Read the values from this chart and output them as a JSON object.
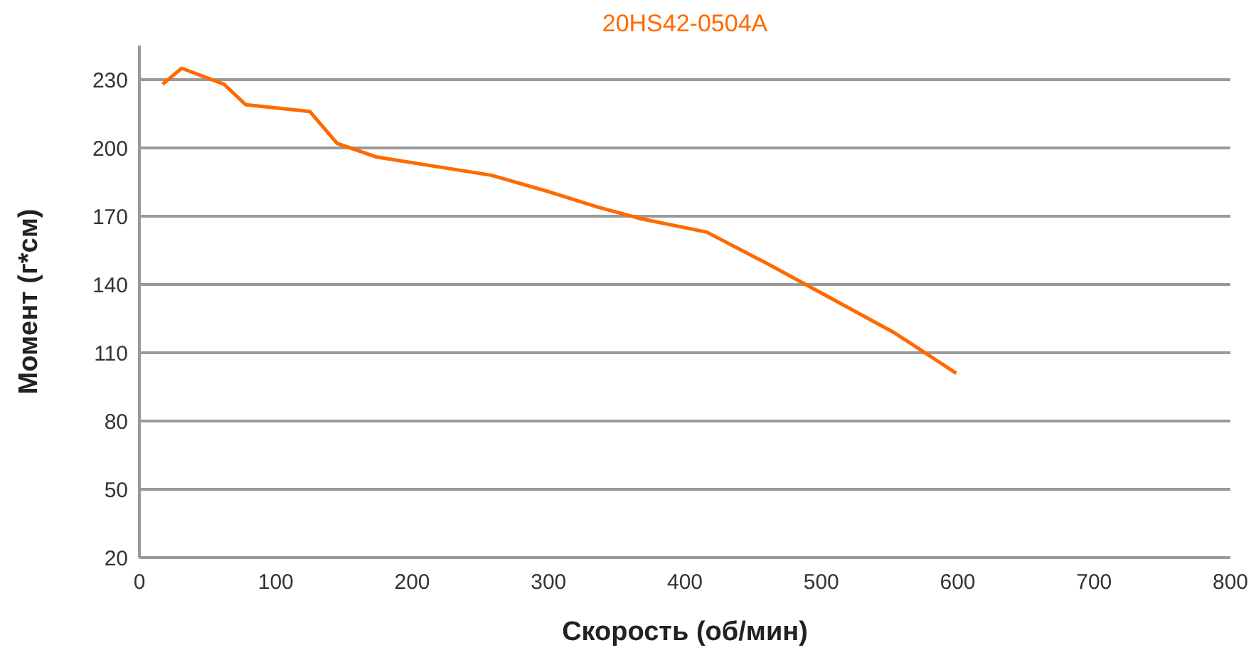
{
  "chart_data": {
    "type": "line",
    "title": "20HS42-0504A",
    "xlabel": "Скорость (об/мин)",
    "ylabel": "Момент (г*см)",
    "xlim": [
      0,
      800
    ],
    "xticks": [
      0,
      100,
      200,
      300,
      400,
      500,
      600,
      700,
      800
    ],
    "ylim": [
      20,
      245
    ],
    "yticks": [
      20,
      50,
      80,
      110,
      140,
      170,
      200,
      230
    ],
    "grid": "y",
    "series": [
      {
        "color": "#ff6a00",
        "x": [
          17,
          31,
          62,
          78,
          125,
          145,
          174,
          216,
          258,
          299,
          336,
          367,
          416,
          461,
          553,
          599
        ],
        "values": [
          228,
          235,
          228,
          219,
          216,
          202,
          196,
          192,
          188,
          181,
          174,
          169,
          163,
          149,
          119,
          101
        ]
      }
    ]
  }
}
